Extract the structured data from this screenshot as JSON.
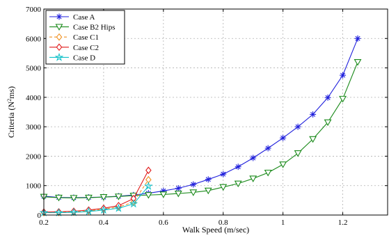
{
  "chart_data": {
    "type": "line",
    "xlabel": "Walk Speed (m/sec)",
    "ylabel": "Criteria (N",
    "ylabel_sup": "2",
    "ylabel_suffix": "ms)",
    "xlim": [
      0.2,
      1.35
    ],
    "ylim": [
      0,
      7000
    ],
    "xticks": [
      0.2,
      0.4,
      0.6,
      0.8,
      1,
      1.2
    ],
    "xtick_labels": [
      "0.2",
      "0.4",
      "0.6",
      "0.8",
      "1",
      "1.2"
    ],
    "yticks": [
      0,
      1000,
      2000,
      3000,
      4000,
      5000,
      6000,
      7000
    ],
    "ytick_labels": [
      "0",
      "1000",
      "2000",
      "3000",
      "4000",
      "5000",
      "6000",
      "7000"
    ],
    "grid": true,
    "legend_position": "top-left",
    "series": [
      {
        "name": "Case A",
        "color": "#1f1fdc",
        "marker": "asterisk",
        "dash": "",
        "x": [
          0.2,
          0.25,
          0.3,
          0.35,
          0.4,
          0.45,
          0.5,
          0.55,
          0.6,
          0.65,
          0.7,
          0.75,
          0.8,
          0.85,
          0.9,
          0.95,
          1.0,
          1.05,
          1.1,
          1.15,
          1.2,
          1.25
        ],
        "y": [
          640,
          600,
          590,
          600,
          610,
          640,
          680,
          740,
          820,
          910,
          1040,
          1210,
          1390,
          1640,
          1940,
          2270,
          2620,
          3000,
          3420,
          3990,
          4750,
          6000
        ]
      },
      {
        "name": "Case B2 Hips",
        "color": "#1a8a1a",
        "marker": "triangle-down",
        "dash": "",
        "x": [
          0.2,
          0.25,
          0.3,
          0.35,
          0.4,
          0.45,
          0.5,
          0.55,
          0.6,
          0.65,
          0.7,
          0.75,
          0.8,
          0.85,
          0.9,
          0.95,
          1.0,
          1.05,
          1.1,
          1.15,
          1.2,
          1.25
        ],
        "y": [
          620,
          590,
          580,
          590,
          610,
          630,
          660,
          680,
          700,
          730,
          770,
          830,
          950,
          1070,
          1240,
          1440,
          1720,
          2100,
          2580,
          3150,
          3950,
          5200
        ]
      },
      {
        "name": "Case C1",
        "color": "#f09020",
        "marker": "diamond",
        "dash": "4,3",
        "x": [
          0.2,
          0.25,
          0.3,
          0.35,
          0.4,
          0.45,
          0.5,
          0.55
        ],
        "y": [
          80,
          85,
          100,
          140,
          200,
          270,
          440,
          1200
        ]
      },
      {
        "name": "Case C2",
        "color": "#e01818",
        "marker": "diamond",
        "dash": "",
        "x": [
          0.2,
          0.25,
          0.3,
          0.35,
          0.4,
          0.45,
          0.5,
          0.55
        ],
        "y": [
          100,
          110,
          130,
          170,
          230,
          320,
          560,
          1520
        ]
      },
      {
        "name": "Case D",
        "color": "#10c0c8",
        "marker": "star",
        "dash": "",
        "x": [
          0.2,
          0.25,
          0.3,
          0.35,
          0.4,
          0.45,
          0.5,
          0.55
        ],
        "y": [
          80,
          80,
          90,
          120,
          170,
          230,
          380,
          980
        ]
      }
    ]
  }
}
